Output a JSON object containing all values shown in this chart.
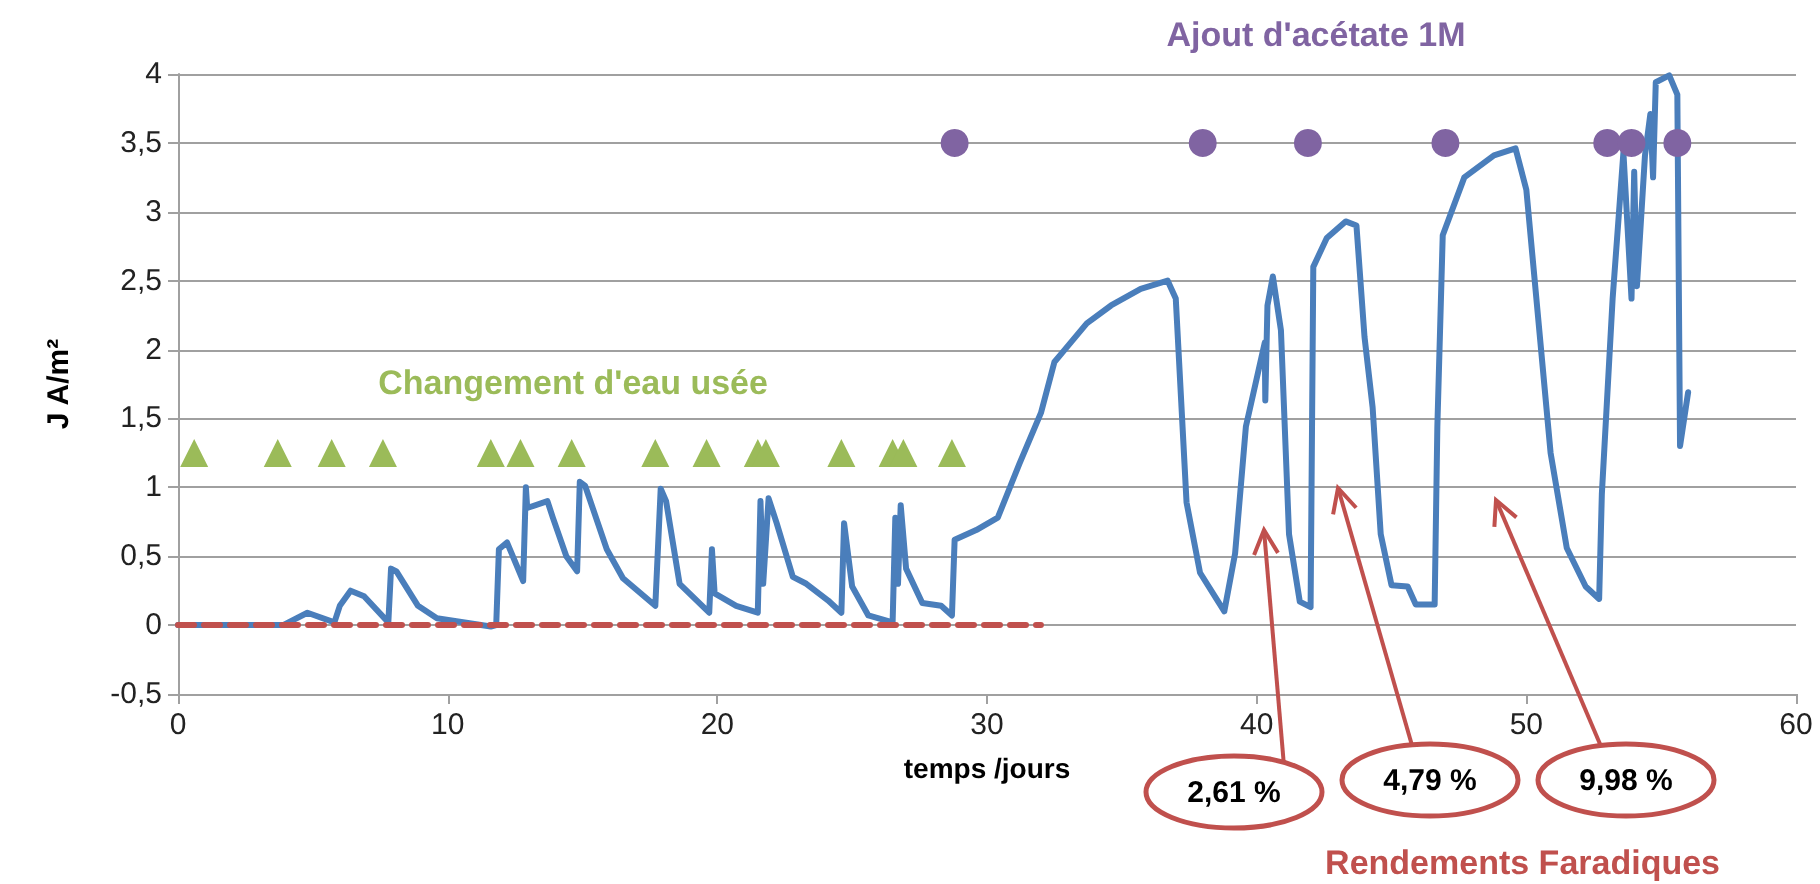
{
  "chart_data": {
    "type": "line",
    "xlabel": "temps /jours",
    "ylabel": "J A/m²",
    "xlim": [
      0,
      60
    ],
    "xticks": [
      0,
      10,
      20,
      30,
      40,
      50,
      60
    ],
    "ylim": [
      -0.5,
      4
    ],
    "yticks": [
      {
        "value": -0.5,
        "label": "-0,5"
      },
      0,
      {
        "value": 0.5,
        "label": "0,5"
      },
      1,
      {
        "value": 1.5,
        "label": "1,5"
      },
      2,
      {
        "value": 2.5,
        "label": "2,5"
      },
      3,
      {
        "value": 3.5,
        "label": "3,5"
      },
      4
    ],
    "grid": "y",
    "series": [
      {
        "color": "#4a7ebb",
        "marker": "none",
        "line_style": "solid",
        "x": [
          0,
          3.9,
          4.8,
          5.8,
          6.0,
          6.4,
          6.9,
          7.8,
          7.9,
          8.1,
          8.9,
          9.6,
          11.6,
          11.8,
          11.9,
          12.2,
          12.8,
          12.9,
          12.95,
          13.7,
          13.9,
          14.4,
          14.8,
          14.9,
          15.1,
          15.9,
          16.5,
          17.7,
          17.9,
          18.1,
          18.6,
          19.7,
          19.8,
          19.9,
          20.7,
          21.5,
          21.6,
          21.7,
          21.9,
          22.2,
          22.8,
          23.3,
          24.1,
          24.6,
          24.7,
          25.0,
          25.6,
          26.5,
          26.6,
          26.7,
          26.8,
          27.0,
          27.6,
          28.3,
          28.7,
          28.8,
          29.6,
          30.4,
          31.2,
          32.0,
          32.5,
          32.8,
          33.7,
          34.6,
          35.7,
          36.7,
          37.0,
          37.4,
          37.9,
          38.8,
          39.2,
          39.6,
          40.3,
          40.32,
          40.4,
          40.6,
          40.9,
          41.2,
          41.6,
          42.0,
          42.1,
          42.6,
          43.3,
          43.7,
          44.0,
          44.3,
          44.6,
          45.0,
          45.6,
          45.9,
          46.6,
          46.7,
          46.9,
          47.7,
          48.8,
          49.6,
          50.0,
          50.9,
          51.5,
          52.2,
          52.7,
          52.8,
          53.2,
          53.6,
          53.9,
          54.0,
          54.1,
          54.4,
          54.6,
          54.7,
          54.8,
          55.3,
          55.6,
          55.7,
          56.0
        ],
        "values": [
          0,
          0,
          0.09,
          0.02,
          0.14,
          0.25,
          0.21,
          0.02,
          0.41,
          0.39,
          0.14,
          0.05,
          -0.01,
          0,
          0.55,
          0.6,
          0.32,
          1.0,
          0.85,
          0.9,
          0.78,
          0.5,
          0.39,
          1.04,
          1.01,
          0.55,
          0.34,
          0.14,
          0.99,
          0.9,
          0.3,
          0.09,
          0.55,
          0.23,
          0.14,
          0.09,
          0.9,
          0.3,
          0.92,
          0.74,
          0.35,
          0.3,
          0.18,
          0.09,
          0.74,
          0.28,
          0.07,
          0.02,
          0.78,
          0.3,
          0.87,
          0.41,
          0.16,
          0.14,
          0.07,
          0.62,
          0.69,
          0.78,
          1.17,
          1.54,
          1.91,
          1.98,
          2.19,
          2.32,
          2.44,
          2.5,
          2.37,
          0.89,
          0.38,
          0.1,
          0.52,
          1.44,
          2.05,
          1.63,
          2.32,
          2.53,
          2.14,
          0.66,
          0.17,
          0.13,
          2.6,
          2.81,
          2.93,
          2.9,
          2.09,
          1.58,
          0.66,
          0.29,
          0.28,
          0.15,
          0.15,
          1.44,
          2.83,
          3.25,
          3.41,
          3.46,
          3.16,
          1.25,
          0.56,
          0.28,
          0.19,
          0.95,
          2.37,
          3.43,
          2.37,
          3.29,
          2.46,
          3.41,
          3.71,
          3.25,
          3.94,
          3.99,
          3.85,
          1.3,
          1.69
        ]
      },
      {
        "type": "line",
        "color": "#c0504d",
        "marker": "none",
        "line_style": "dashed",
        "x": [
          0,
          32
        ],
        "values": [
          0,
          0
        ]
      },
      {
        "type": "scatter",
        "name": "Changement d'eau usée",
        "color": "#9bbb59",
        "marker": "triangle",
        "x": [
          0.6,
          3.7,
          5.7,
          7.6,
          11.6,
          12.7,
          14.6,
          17.7,
          19.6,
          21.5,
          21.8,
          24.6,
          26.5,
          26.9,
          28.7
        ],
        "values": [
          1.25,
          1.25,
          1.25,
          1.25,
          1.25,
          1.25,
          1.25,
          1.25,
          1.25,
          1.25,
          1.25,
          1.25,
          1.25,
          1.25,
          1.25
        ]
      },
      {
        "type": "scatter",
        "name": "Ajout d'acétate 1M",
        "color": "#8064a2",
        "marker": "circle",
        "x": [
          28.8,
          38.0,
          41.9,
          47.0,
          53.0,
          53.9,
          55.6
        ],
        "values": [
          3.5,
          3.5,
          3.5,
          3.5,
          3.5,
          3.5,
          3.5
        ]
      }
    ],
    "annotations": [
      "2,61 %",
      "4,79 %",
      "9,98 %",
      "Rendements Faradiques"
    ]
  }
}
